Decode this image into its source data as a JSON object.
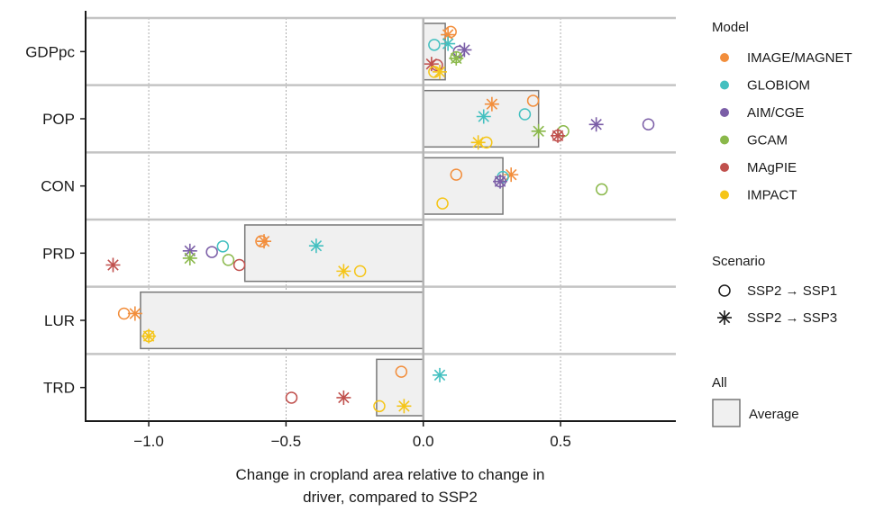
{
  "chart_data": {
    "type": "scatter",
    "xlabel_lines": [
      "Change in cropland area relative to change in",
      "driver, compared to SSP2"
    ],
    "xlim": [
      -1.23,
      0.92
    ],
    "xticks": [
      -1.0,
      -0.5,
      0.0,
      0.5
    ],
    "xtick_labels": [
      "−1.0",
      "−0.5",
      "0.0",
      "0.5"
    ],
    "grid": "vertical dotted at ticks",
    "categories": [
      "GDPpc",
      "POP",
      "CON",
      "PRD",
      "LUR",
      "TRD"
    ],
    "averages": [
      0.08,
      0.42,
      0.29,
      -0.65,
      -1.03,
      -0.17
    ],
    "series": [
      {
        "name": "IMAGE/MAGNET",
        "color": "#f28e3c",
        "points": [
          {
            "cat": "GDPpc",
            "scenario": "SSP1",
            "value": 0.1,
            "lane": 0.15
          },
          {
            "cat": "GDPpc",
            "scenario": "SSP3",
            "value": 0.09,
            "lane": 0.2
          },
          {
            "cat": "POP",
            "scenario": "SSP1",
            "value": 0.4,
            "lane": 0.18
          },
          {
            "cat": "POP",
            "scenario": "SSP3",
            "value": 0.25,
            "lane": 0.24
          },
          {
            "cat": "CON",
            "scenario": "SSP1",
            "value": 0.12,
            "lane": 0.3
          },
          {
            "cat": "CON",
            "scenario": "SSP3",
            "value": 0.32,
            "lane": 0.3
          },
          {
            "cat": "PRD",
            "scenario": "SSP1",
            "value": -0.59,
            "lane": 0.29
          },
          {
            "cat": "PRD",
            "scenario": "SSP3",
            "value": -0.58,
            "lane": 0.29
          },
          {
            "cat": "LUR",
            "scenario": "SSP1",
            "value": -1.09,
            "lane": 0.38
          },
          {
            "cat": "LUR",
            "scenario": "SSP3",
            "value": -1.05,
            "lane": 0.38
          },
          {
            "cat": "TRD",
            "scenario": "SSP1",
            "value": -0.08,
            "lane": 0.22
          }
        ]
      },
      {
        "name": "GLOBIOM",
        "color": "#43c0c0",
        "points": [
          {
            "cat": "GDPpc",
            "scenario": "SSP1",
            "value": 0.04,
            "lane": 0.38
          },
          {
            "cat": "GDPpc",
            "scenario": "SSP3",
            "value": 0.09,
            "lane": 0.36
          },
          {
            "cat": "POP",
            "scenario": "SSP1",
            "value": 0.37,
            "lane": 0.42
          },
          {
            "cat": "POP",
            "scenario": "SSP3",
            "value": 0.22,
            "lane": 0.46
          },
          {
            "cat": "CON",
            "scenario": "SSP1",
            "value": 0.29,
            "lane": 0.34
          },
          {
            "cat": "PRD",
            "scenario": "SSP1",
            "value": -0.73,
            "lane": 0.38
          },
          {
            "cat": "PRD",
            "scenario": "SSP3",
            "value": -0.39,
            "lane": 0.37
          },
          {
            "cat": "TRD",
            "scenario": "SSP3",
            "value": 0.06,
            "lane": 0.28
          }
        ]
      },
      {
        "name": "AIM/CGE",
        "color": "#7b5ea7",
        "points": [
          {
            "cat": "GDPpc",
            "scenario": "SSP1",
            "value": 0.13,
            "lane": 0.5
          },
          {
            "cat": "GDPpc",
            "scenario": "SSP3",
            "value": 0.15,
            "lane": 0.47
          },
          {
            "cat": "POP",
            "scenario": "SSP1",
            "value": 0.82,
            "lane": 0.6
          },
          {
            "cat": "POP",
            "scenario": "SSP3",
            "value": 0.63,
            "lane": 0.6
          },
          {
            "cat": "CON",
            "scenario": "SSP1",
            "value": 0.28,
            "lane": 0.42
          },
          {
            "cat": "CON",
            "scenario": "SSP3",
            "value": 0.28,
            "lane": 0.42
          },
          {
            "cat": "PRD",
            "scenario": "SSP1",
            "value": -0.77,
            "lane": 0.48
          },
          {
            "cat": "PRD",
            "scenario": "SSP3",
            "value": -0.85,
            "lane": 0.46
          }
        ]
      },
      {
        "name": "GCAM",
        "color": "#8ab84a",
        "points": [
          {
            "cat": "GDPpc",
            "scenario": "SSP1",
            "value": 0.12,
            "lane": 0.6
          },
          {
            "cat": "GDPpc",
            "scenario": "SSP3",
            "value": 0.12,
            "lane": 0.62
          },
          {
            "cat": "POP",
            "scenario": "SSP1",
            "value": 0.51,
            "lane": 0.72
          },
          {
            "cat": "POP",
            "scenario": "SSP3",
            "value": 0.42,
            "lane": 0.72
          },
          {
            "cat": "CON",
            "scenario": "SSP1",
            "value": 0.65,
            "lane": 0.56
          },
          {
            "cat": "PRD",
            "scenario": "SSP1",
            "value": -0.71,
            "lane": 0.62
          },
          {
            "cat": "PRD",
            "scenario": "SSP3",
            "value": -0.85,
            "lane": 0.59
          }
        ]
      },
      {
        "name": "MAgPIE",
        "color": "#c0504d",
        "points": [
          {
            "cat": "GDPpc",
            "scenario": "SSP1",
            "value": 0.05,
            "lane": 0.74
          },
          {
            "cat": "GDPpc",
            "scenario": "SSP3",
            "value": 0.03,
            "lane": 0.72
          },
          {
            "cat": "POP",
            "scenario": "SSP1",
            "value": 0.49,
            "lane": 0.8
          },
          {
            "cat": "POP",
            "scenario": "SSP3",
            "value": 0.49,
            "lane": 0.8
          },
          {
            "cat": "PRD",
            "scenario": "SSP1",
            "value": -0.67,
            "lane": 0.71
          },
          {
            "cat": "PRD",
            "scenario": "SSP3",
            "value": -1.13,
            "lane": 0.71
          },
          {
            "cat": "TRD",
            "scenario": "SSP1",
            "value": -0.48,
            "lane": 0.68
          },
          {
            "cat": "TRD",
            "scenario": "SSP3",
            "value": -0.29,
            "lane": 0.68
          }
        ]
      },
      {
        "name": "IMPACT",
        "color": "#f5c518",
        "points": [
          {
            "cat": "GDPpc",
            "scenario": "SSP1",
            "value": 0.04,
            "lane": 0.86
          },
          {
            "cat": "GDPpc",
            "scenario": "SSP3",
            "value": 0.06,
            "lane": 0.86
          },
          {
            "cat": "POP",
            "scenario": "SSP1",
            "value": 0.23,
            "lane": 0.92
          },
          {
            "cat": "POP",
            "scenario": "SSP3",
            "value": 0.2,
            "lane": 0.92
          },
          {
            "cat": "CON",
            "scenario": "SSP1",
            "value": 0.07,
            "lane": 0.81
          },
          {
            "cat": "PRD",
            "scenario": "SSP1",
            "value": -0.23,
            "lane": 0.82
          },
          {
            "cat": "PRD",
            "scenario": "SSP3",
            "value": -0.29,
            "lane": 0.82
          },
          {
            "cat": "LUR",
            "scenario": "SSP1",
            "value": -1.0,
            "lane": 0.78
          },
          {
            "cat": "LUR",
            "scenario": "SSP3",
            "value": -1.0,
            "lane": 0.78
          },
          {
            "cat": "TRD",
            "scenario": "SSP1",
            "value": -0.16,
            "lane": 0.83
          },
          {
            "cat": "TRD",
            "scenario": "SSP3",
            "value": -0.07,
            "lane": 0.83
          }
        ]
      }
    ],
    "legend": {
      "model_title": "Model",
      "scenario_title": "Scenario",
      "scenarios": [
        {
          "key": "SSP1",
          "label": "SSP2 → SSP1",
          "marker": "circle"
        },
        {
          "key": "SSP3",
          "label": "SSP2 → SSP3",
          "marker": "asterisk"
        }
      ],
      "all_title": "All",
      "average_label": "Average"
    }
  }
}
